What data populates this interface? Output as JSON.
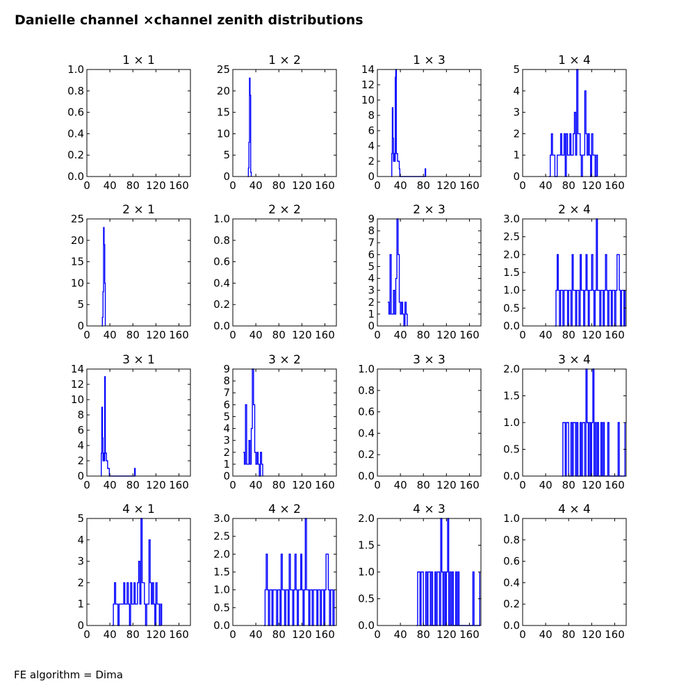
{
  "figure": {
    "title": "Danielle channel ×channel zenith distributions",
    "footnote": "FE algorithm = Dima"
  },
  "colors": {
    "series": "#0000ff",
    "axes": "#000000",
    "background": "#ffffff"
  },
  "chart_data": [
    {
      "type": "line",
      "title": "1 × 1",
      "row": 1,
      "col": 1,
      "xlim": [
        0,
        180
      ],
      "ylim": [
        0,
        1.0
      ],
      "xticks": [
        "0",
        "40",
        "80",
        "120",
        "160"
      ],
      "yticks": [
        "0.0",
        "0.2",
        "0.4",
        "0.6",
        "0.8",
        "1.0"
      ],
      "x": [],
      "y": []
    },
    {
      "type": "line",
      "title": "1 × 2",
      "row": 1,
      "col": 2,
      "xlim": [
        0,
        180
      ],
      "ylim": [
        0,
        25
      ],
      "xticks": [
        "0",
        "40",
        "80",
        "120",
        "160"
      ],
      "yticks": [
        "0",
        "5",
        "10",
        "15",
        "20",
        "25"
      ],
      "x": [
        26,
        27,
        28,
        29,
        30,
        31,
        32
      ],
      "y": [
        0,
        2,
        8,
        23,
        19,
        1,
        0
      ]
    },
    {
      "type": "line",
      "title": "1 × 3",
      "row": 1,
      "col": 3,
      "xlim": [
        0,
        180
      ],
      "ylim": [
        0,
        14
      ],
      "xticks": [
        "0",
        "40",
        "80",
        "120",
        "160"
      ],
      "yticks": [
        "0",
        "2",
        "4",
        "6",
        "8",
        "10",
        "12",
        "14"
      ],
      "x": [
        24,
        25,
        26,
        27,
        28,
        29,
        30,
        31,
        32,
        33,
        34,
        35,
        36,
        37,
        38,
        39,
        40,
        82,
        83,
        84
      ],
      "y": [
        0,
        3,
        9,
        5,
        2,
        3,
        2,
        13,
        14,
        3,
        3,
        2,
        2,
        2,
        1,
        0,
        0,
        0,
        1,
        0
      ]
    },
    {
      "type": "line",
      "title": "1 × 4",
      "row": 1,
      "col": 4,
      "xlim": [
        0,
        180
      ],
      "ylim": [
        0,
        5
      ],
      "xticks": [
        "0",
        "40",
        "80",
        "120",
        "160"
      ],
      "yticks": [
        "0",
        "1",
        "2",
        "3",
        "4",
        "5"
      ],
      "x": [
        46,
        48,
        50,
        52,
        54,
        56,
        58,
        60,
        62,
        64,
        66,
        68,
        70,
        72,
        74,
        76,
        78,
        80,
        82,
        84,
        86,
        88,
        90,
        92,
        94,
        96,
        98,
        100,
        102,
        104,
        106,
        108,
        110,
        112,
        114,
        116,
        118,
        120,
        122,
        124,
        126,
        128,
        130
      ],
      "y": [
        0,
        1,
        2,
        1,
        1,
        0,
        0,
        1,
        1,
        1,
        2,
        1,
        1,
        2,
        0,
        2,
        1,
        1,
        2,
        1,
        1,
        2,
        3,
        1,
        5,
        2,
        2,
        1,
        0,
        1,
        1,
        4,
        2,
        1,
        2,
        1,
        0,
        2,
        1,
        1,
        0,
        1,
        0
      ]
    },
    {
      "type": "line",
      "title": "2 × 1",
      "row": 2,
      "col": 1,
      "xlim": [
        0,
        180
      ],
      "ylim": [
        0,
        25
      ],
      "xticks": [
        "0",
        "40",
        "80",
        "120",
        "160"
      ],
      "yticks": [
        "0",
        "5",
        "10",
        "15",
        "20",
        "25"
      ],
      "x": [
        26,
        27,
        28,
        29,
        30,
        31,
        32
      ],
      "y": [
        0,
        2,
        8,
        23,
        19,
        10,
        0
      ]
    },
    {
      "type": "line",
      "title": "2 × 2",
      "row": 2,
      "col": 2,
      "xlim": [
        0,
        180
      ],
      "ylim": [
        0,
        1.0
      ],
      "xticks": [
        "0",
        "40",
        "80",
        "120",
        "160"
      ],
      "yticks": [
        "0.0",
        "0.2",
        "0.4",
        "0.6",
        "0.8",
        "1.0"
      ],
      "x": [],
      "y": []
    },
    {
      "type": "line",
      "title": "2 × 3",
      "row": 2,
      "col": 3,
      "xlim": [
        0,
        180
      ],
      "ylim": [
        0,
        9
      ],
      "xticks": [
        "0",
        "40",
        "80",
        "120",
        "160"
      ],
      "yticks": [
        "0",
        "1",
        "2",
        "3",
        "4",
        "5",
        "6",
        "7",
        "8",
        "9"
      ],
      "x": [
        18,
        20,
        22,
        24,
        26,
        28,
        30,
        32,
        34,
        36,
        38,
        40,
        42,
        44,
        46,
        48,
        50,
        52
      ],
      "y": [
        2,
        1,
        6,
        1,
        1,
        3,
        1,
        4,
        9,
        6,
        2,
        1,
        2,
        1,
        0,
        2,
        1,
        0
      ]
    },
    {
      "type": "line",
      "title": "2 × 4",
      "row": 2,
      "col": 4,
      "xlim": [
        0,
        180
      ],
      "ylim": [
        0,
        3.0
      ],
      "xticks": [
        "0",
        "40",
        "80",
        "120",
        "160"
      ],
      "yticks": [
        "0.0",
        "0.5",
        "1.0",
        "1.5",
        "2.0",
        "2.5",
        "3.0"
      ],
      "x": [
        56,
        58,
        60,
        62,
        64,
        66,
        68,
        70,
        72,
        74,
        76,
        78,
        80,
        82,
        84,
        86,
        88,
        90,
        92,
        94,
        96,
        98,
        100,
        102,
        104,
        106,
        108,
        110,
        112,
        114,
        116,
        118,
        120,
        122,
        124,
        126,
        128,
        130,
        132,
        134,
        136,
        138,
        140,
        142,
        144,
        146,
        148,
        150,
        152,
        154,
        156,
        158,
        160,
        162,
        164,
        166,
        168,
        170,
        172,
        174,
        176,
        178
      ],
      "y": [
        0,
        1,
        2,
        1,
        0,
        1,
        1,
        0,
        1,
        1,
        1,
        0,
        1,
        1,
        0,
        2,
        1,
        1,
        0,
        1,
        1,
        0,
        2,
        1,
        1,
        0,
        1,
        2,
        1,
        0,
        1,
        1,
        2,
        1,
        0,
        1,
        3,
        1,
        1,
        0,
        1,
        1,
        0,
        1,
        2,
        1,
        0,
        1,
        1,
        0,
        1,
        1,
        0,
        1,
        2,
        2,
        1,
        0,
        1,
        1,
        0,
        1
      ]
    },
    {
      "type": "line",
      "title": "3 × 1",
      "row": 3,
      "col": 1,
      "xlim": [
        0,
        180
      ],
      "ylim": [
        0,
        14
      ],
      "xticks": [
        "0",
        "40",
        "80",
        "120",
        "160"
      ],
      "yticks": [
        "0",
        "2",
        "4",
        "6",
        "8",
        "10",
        "12",
        "14"
      ],
      "x": [
        24,
        25,
        26,
        27,
        28,
        29,
        30,
        31,
        32,
        33,
        34,
        35,
        36,
        37,
        38,
        39,
        40,
        82,
        83,
        84
      ],
      "y": [
        0,
        3,
        9,
        5,
        2,
        3,
        2,
        13,
        3,
        3,
        2,
        2,
        1,
        1,
        1,
        0,
        0,
        0,
        1,
        0
      ]
    },
    {
      "type": "line",
      "title": "3 × 2",
      "row": 3,
      "col": 2,
      "xlim": [
        0,
        180
      ],
      "ylim": [
        0,
        9
      ],
      "xticks": [
        "0",
        "40",
        "80",
        "120",
        "160"
      ],
      "yticks": [
        "0",
        "1",
        "2",
        "3",
        "4",
        "5",
        "6",
        "7",
        "8",
        "9"
      ],
      "x": [
        18,
        20,
        22,
        24,
        26,
        28,
        30,
        32,
        34,
        36,
        38,
        40,
        42,
        44,
        46,
        48,
        50,
        52
      ],
      "y": [
        2,
        1,
        6,
        1,
        1,
        3,
        1,
        4,
        9,
        6,
        2,
        1,
        2,
        1,
        0,
        2,
        1,
        0
      ]
    },
    {
      "type": "line",
      "title": "3 × 3",
      "row": 3,
      "col": 3,
      "xlim": [
        0,
        180
      ],
      "ylim": [
        0,
        1.0
      ],
      "xticks": [
        "0",
        "40",
        "80",
        "120",
        "160"
      ],
      "yticks": [
        "0.0",
        "0.2",
        "0.4",
        "0.6",
        "0.8",
        "1.0"
      ],
      "x": [],
      "y": []
    },
    {
      "type": "line",
      "title": "3 × 4",
      "row": 3,
      "col": 4,
      "xlim": [
        0,
        180
      ],
      "ylim": [
        0,
        2.0
      ],
      "xticks": [
        "0",
        "40",
        "80",
        "120",
        "160"
      ],
      "yticks": [
        "0.0",
        "0.5",
        "1.0",
        "1.5",
        "2.0"
      ],
      "x": [
        68,
        70,
        72,
        74,
        76,
        78,
        80,
        82,
        84,
        86,
        88,
        90,
        92,
        94,
        96,
        98,
        100,
        102,
        104,
        106,
        108,
        110,
        112,
        114,
        116,
        118,
        120,
        122,
        124,
        126,
        128,
        130,
        132,
        134,
        136,
        138,
        140,
        142,
        144,
        146,
        148,
        150,
        152,
        154,
        156,
        158,
        160,
        162,
        164,
        166,
        168,
        170,
        172,
        174,
        176,
        178
      ],
      "y": [
        0,
        1,
        1,
        0,
        1,
        1,
        0,
        0,
        1,
        0,
        1,
        1,
        0,
        1,
        0,
        0,
        1,
        0,
        1,
        1,
        0,
        2,
        1,
        0,
        1,
        0,
        1,
        2,
        0,
        1,
        0,
        1,
        0,
        0,
        1,
        0,
        1,
        0,
        0,
        0,
        1,
        0,
        0,
        0,
        0,
        0,
        0,
        0,
        0,
        1,
        0,
        0,
        0,
        0,
        0,
        1
      ]
    },
    {
      "type": "line",
      "title": "4 × 1",
      "row": 4,
      "col": 1,
      "xlim": [
        0,
        180
      ],
      "ylim": [
        0,
        5
      ],
      "xticks": [
        "0",
        "40",
        "80",
        "120",
        "160"
      ],
      "yticks": [
        "0",
        "1",
        "2",
        "3",
        "4",
        "5"
      ],
      "x": [
        44,
        46,
        48,
        50,
        52,
        54,
        56,
        58,
        60,
        62,
        64,
        66,
        68,
        70,
        72,
        74,
        76,
        78,
        80,
        82,
        84,
        86,
        88,
        90,
        92,
        94,
        96,
        98,
        100,
        102,
        104,
        106,
        108,
        110,
        112,
        114,
        116,
        118,
        120,
        122,
        124,
        126,
        128,
        130
      ],
      "y": [
        0,
        1,
        2,
        1,
        1,
        0,
        1,
        1,
        1,
        1,
        2,
        1,
        1,
        2,
        1,
        0,
        2,
        1,
        1,
        2,
        1,
        1,
        2,
        3,
        1,
        5,
        2,
        2,
        1,
        0,
        1,
        1,
        4,
        2,
        1,
        2,
        1,
        0,
        2,
        1,
        1,
        0,
        1,
        0
      ]
    },
    {
      "type": "line",
      "title": "4 × 2",
      "row": 4,
      "col": 2,
      "xlim": [
        0,
        180
      ],
      "ylim": [
        0,
        3.0
      ],
      "xticks": [
        "0",
        "40",
        "80",
        "120",
        "160"
      ],
      "yticks": [
        "0.0",
        "0.5",
        "1.0",
        "1.5",
        "2.0",
        "2.5",
        "3.0"
      ],
      "x": [
        54,
        56,
        58,
        60,
        62,
        64,
        66,
        68,
        70,
        72,
        74,
        76,
        78,
        80,
        82,
        84,
        86,
        88,
        90,
        92,
        94,
        96,
        98,
        100,
        102,
        104,
        106,
        108,
        110,
        112,
        114,
        116,
        118,
        120,
        122,
        124,
        126,
        128,
        130,
        132,
        134,
        136,
        138,
        140,
        142,
        144,
        146,
        148,
        150,
        152,
        154,
        156,
        158,
        160,
        162,
        164,
        166,
        168,
        170,
        172,
        174,
        176
      ],
      "y": [
        0,
        1,
        2,
        1,
        0,
        1,
        1,
        0,
        1,
        1,
        1,
        0,
        1,
        1,
        0,
        2,
        1,
        1,
        0,
        1,
        1,
        0,
        2,
        1,
        1,
        0,
        1,
        2,
        1,
        0,
        1,
        1,
        2,
        1,
        0,
        1,
        3,
        1,
        1,
        0,
        1,
        1,
        0,
        1,
        1,
        1,
        0,
        1,
        1,
        0,
        1,
        1,
        0,
        1,
        2,
        2,
        1,
        0,
        1,
        1,
        0,
        1
      ]
    },
    {
      "type": "line",
      "title": "4 × 3",
      "row": 4,
      "col": 3,
      "xlim": [
        0,
        180
      ],
      "ylim": [
        0,
        2.0
      ],
      "xticks": [
        "0",
        "40",
        "80",
        "120",
        "160"
      ],
      "yticks": [
        "0.0",
        "0.5",
        "1.0",
        "1.5",
        "2.0"
      ],
      "x": [
        68,
        70,
        72,
        74,
        76,
        78,
        80,
        82,
        84,
        86,
        88,
        90,
        92,
        94,
        96,
        98,
        100,
        102,
        104,
        106,
        108,
        110,
        112,
        114,
        116,
        118,
        120,
        122,
        124,
        126,
        128,
        130,
        132,
        134,
        136,
        138,
        140,
        142,
        144,
        146,
        148,
        150,
        152,
        154,
        156,
        158,
        160,
        162,
        164,
        166,
        168,
        170,
        172,
        174,
        176,
        178
      ],
      "y": [
        0,
        1,
        1,
        0,
        1,
        1,
        0,
        0,
        1,
        0,
        1,
        1,
        0,
        1,
        0,
        0,
        1,
        0,
        1,
        1,
        0,
        2,
        1,
        0,
        1,
        0,
        1,
        2,
        0,
        1,
        0,
        1,
        0,
        0,
        1,
        0,
        1,
        0,
        0,
        0,
        0,
        0,
        0,
        0,
        0,
        0,
        0,
        0,
        0,
        1,
        0,
        0,
        0,
        0,
        0,
        1
      ]
    },
    {
      "type": "line",
      "title": "4 × 4",
      "row": 4,
      "col": 4,
      "xlim": [
        0,
        180
      ],
      "ylim": [
        0,
        1.0
      ],
      "xticks": [
        "0",
        "40",
        "80",
        "120",
        "160"
      ],
      "yticks": [
        "0.0",
        "0.2",
        "0.4",
        "0.6",
        "0.8",
        "1.0"
      ],
      "x": [],
      "y": []
    }
  ]
}
